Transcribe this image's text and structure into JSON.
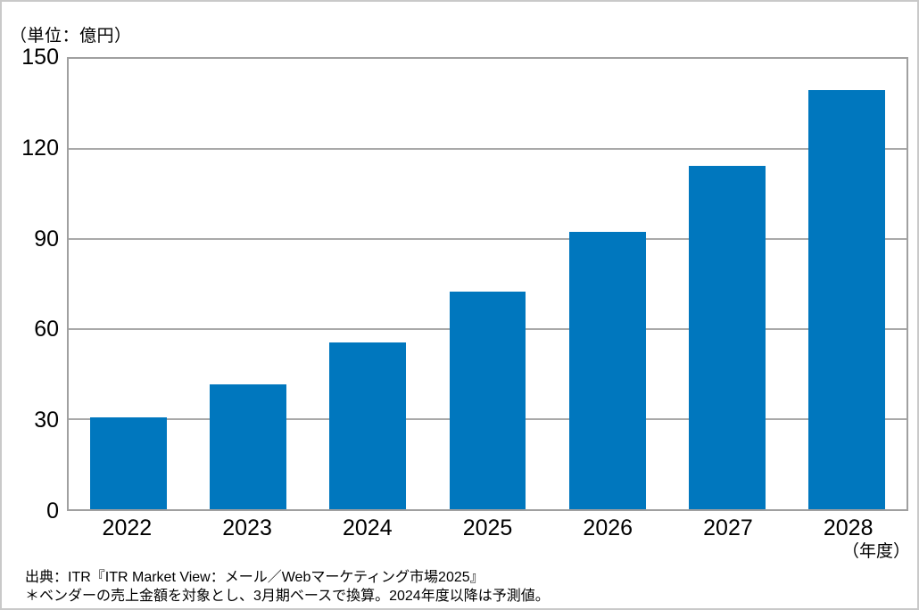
{
  "unit_label": "（単位：億円）",
  "x_axis_suffix": "（年度）",
  "source": {
    "line1": "出典：ITR『ITR Market View：メール／Webマーケティング市場2025』",
    "line2": "＊ベンダーの売上金額を対象とし、3月期ベースで換算。2024年度以降は予測値。"
  },
  "colors": {
    "bar": "#0077be",
    "gridline": "#a9a9a9",
    "plot_border": "#a0a0a0",
    "outer_border": "#c9c9c9"
  },
  "chart_data": {
    "type": "bar",
    "categories": [
      "2022",
      "2023",
      "2024",
      "2025",
      "2026",
      "2027",
      "2028"
    ],
    "values": [
      30.5,
      41.5,
      55.5,
      72.5,
      92.5,
      114.5,
      139.5
    ],
    "title": "",
    "xlabel": "（年度）",
    "ylabel": "（単位：億円）",
    "ylim": [
      0,
      150
    ],
    "yticks": [
      0,
      30,
      60,
      90,
      120,
      150
    ],
    "grid": true,
    "legend_position": "none"
  }
}
